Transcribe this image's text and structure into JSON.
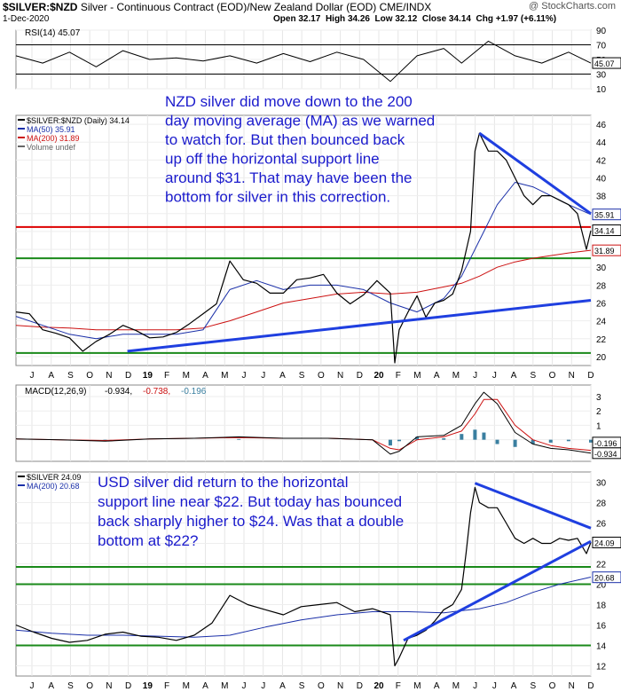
{
  "header": {
    "symbol": "$SILVER:$NZD",
    "description": "Silver - Continuous Contract (EOD)/New Zealand Dollar (EOD)",
    "exchange": "CME/INDX",
    "date": "1-Dec-2020",
    "open_label": "Open",
    "open": "32.17",
    "high_label": "High",
    "high": "34.26",
    "low_label": "Low",
    "low": "32.12",
    "close_label": "Close",
    "close": "34.14",
    "chg_label": "Chg",
    "chg": "+1.97 (+6.11%)",
    "watermark": "@ StockCharts.com"
  },
  "x_axis_labels": [
    "J",
    "A",
    "S",
    "O",
    "N",
    "D",
    "19",
    "F",
    "M",
    "A",
    "M",
    "J",
    "J",
    "A",
    "S",
    "O",
    "N",
    "D",
    "20",
    "F",
    "M",
    "A",
    "M",
    "J",
    "J",
    "A",
    "S",
    "O",
    "N",
    "D"
  ],
  "annotations": {
    "nzd": "NZD silver did move down to the 200 day moving average (MA) as we warned to watch for. But then bounced back up off the horizontal support line around $31. That may have been the bottom for silver in this correction.",
    "usd": "USD silver did return to the horizontal support line near $22. But today has bounced back sharply higher to $24. Was that a double bottom at $22?"
  },
  "colors": {
    "price": "#000000",
    "ma50": "#1a2fa8",
    "ma200": "#cc1111",
    "support_green": "#1a8a1a",
    "resistance_red": "#dd0000",
    "trendline_blue": "#1f3fe0",
    "annotation_text": "#1a1acc",
    "macd_hist": "#3a7fa0",
    "rsi_fill": "#4a6a4a"
  },
  "chart_data": [
    {
      "type": "line",
      "title": "RSI(14) 45.07",
      "legend_label": "RSI(14) 45.07",
      "ylim": [
        10,
        90
      ],
      "y_ticks": [
        10,
        30,
        50,
        70,
        90
      ],
      "reference_lines": [
        30,
        70
      ],
      "last_value": 45.07,
      "last_value_label": "45.07",
      "x": [
        0,
        6,
        12,
        18,
        24,
        30,
        36,
        42,
        48,
        54,
        60,
        66,
        72,
        78,
        84,
        90,
        96,
        100,
        106,
        112,
        118,
        124,
        129
      ],
      "values": [
        55,
        45,
        60,
        40,
        62,
        50,
        52,
        48,
        55,
        45,
        58,
        47,
        60,
        50,
        20,
        55,
        65,
        45,
        75,
        55,
        45,
        60,
        45
      ]
    },
    {
      "type": "line",
      "title": "$SILVER:$NZD (Daily) 34.14",
      "series": [
        {
          "name": "$SILVER:$NZD (Daily) 34.14",
          "legend_label": "$SILVER:$NZD (Daily) 34.14",
          "x": [
            0,
            3,
            6,
            9,
            12,
            15,
            18,
            21,
            24,
            27,
            30,
            33,
            36,
            39,
            42,
            45,
            48,
            51,
            54,
            57,
            60,
            63,
            66,
            69,
            72,
            75,
            78,
            81,
            84,
            85,
            86,
            87,
            88,
            90,
            92,
            94,
            96,
            98,
            100,
            101,
            102,
            103,
            104,
            106,
            108,
            110,
            112,
            114,
            116,
            118,
            120,
            122,
            124,
            126,
            128,
            129
          ],
          "values": [
            25.0,
            24.8,
            23.0,
            22.6,
            22.1,
            20.6,
            21.7,
            22.5,
            23.5,
            22.9,
            22.1,
            22.2,
            22.7,
            23.7,
            24.8,
            25.9,
            30.7,
            28.6,
            28.2,
            27.1,
            27.1,
            28.6,
            28.8,
            29.2,
            27.1,
            25.9,
            26.9,
            28.5,
            27.1,
            19.3,
            23.0,
            24.0,
            25.0,
            26.8,
            24.4,
            26.0,
            26.3,
            27.0,
            29.6,
            31.8,
            34.0,
            43.0,
            45.0,
            43.0,
            43.0,
            42.0,
            40.0,
            38.0,
            37.0,
            38.0,
            38.0,
            37.5,
            37.0,
            36.0,
            32.0,
            34.1
          ]
        },
        {
          "name": "MA(50) 35.91",
          "legend_label": "MA(50) 35.91",
          "x": [
            0,
            6,
            12,
            18,
            24,
            30,
            36,
            42,
            48,
            54,
            60,
            66,
            72,
            78,
            84,
            90,
            96,
            100,
            104,
            108,
            112,
            116,
            120,
            124,
            129
          ],
          "values": [
            24.5,
            23.5,
            22.5,
            22.0,
            22.5,
            22.5,
            22.5,
            23.0,
            27.5,
            28.5,
            27.5,
            28.0,
            28.0,
            27.5,
            26.0,
            25.0,
            26.5,
            29.0,
            33.0,
            37.0,
            39.5,
            39.0,
            38.0,
            37.0,
            35.9
          ]
        },
        {
          "name": "MA(200) 31.89",
          "legend_label": "MA(200) 31.89",
          "x": [
            0,
            6,
            12,
            18,
            24,
            30,
            36,
            42,
            48,
            54,
            60,
            66,
            72,
            78,
            84,
            90,
            96,
            100,
            104,
            108,
            112,
            116,
            120,
            124,
            129
          ],
          "values": [
            23.5,
            23.3,
            23.2,
            23.0,
            23.0,
            23.0,
            23.0,
            23.2,
            24.0,
            25.0,
            26.0,
            26.5,
            27.0,
            27.2,
            27.0,
            27.2,
            27.8,
            28.2,
            29.0,
            30.0,
            30.6,
            31.0,
            31.3,
            31.6,
            31.9
          ]
        },
        {
          "name": "Volume undef",
          "legend_label": "Volume undef",
          "x": [],
          "values": []
        }
      ],
      "ylim": [
        19,
        47
      ],
      "y_ticks": [
        20,
        22,
        24,
        26,
        28,
        30,
        32,
        34,
        36,
        38,
        40,
        42,
        44,
        46
      ],
      "last_value_labels": [
        {
          "value": 35.91,
          "label": "35.91"
        },
        {
          "value": 34.14,
          "label": "34.14"
        },
        {
          "value": 31.89,
          "label": "31.89"
        }
      ],
      "horizontal_lines": [
        {
          "value": 34.5,
          "color": "red"
        },
        {
          "value": 31.0,
          "color": "green"
        },
        {
          "value": 20.4,
          "color": "green"
        }
      ],
      "trendlines": [
        {
          "x": [
            25,
            129
          ],
          "values": [
            20.6,
            26.3
          ]
        },
        {
          "x": [
            104,
            129
          ],
          "values": [
            45.0,
            36.0
          ]
        }
      ]
    },
    {
      "type": "line",
      "title": "MACD(12,26,9) -0.934, -0.738, -0.196",
      "legend_prefix": "MACD(12,26,9)",
      "legend_values": [
        "-0.934",
        "-0.738",
        "-0.196"
      ],
      "ylim": [
        -1.5,
        3.8
      ],
      "y_ticks": [
        3,
        2,
        1,
        0
      ],
      "series": [
        {
          "name": "MACD",
          "x": [
            0,
            10,
            20,
            30,
            40,
            50,
            60,
            70,
            80,
            84,
            86,
            90,
            96,
            100,
            103,
            105,
            108,
            112,
            116,
            120,
            124,
            129
          ],
          "values": [
            0.05,
            0.0,
            -0.1,
            0.05,
            0.1,
            0.2,
            0.1,
            0.1,
            0.0,
            -1.0,
            -0.8,
            0.2,
            0.3,
            1.0,
            2.5,
            3.3,
            2.5,
            0.5,
            -0.3,
            -0.6,
            -0.7,
            -0.934
          ]
        },
        {
          "name": "Signal",
          "x": [
            0,
            10,
            20,
            30,
            40,
            50,
            60,
            70,
            80,
            84,
            86,
            90,
            96,
            100,
            103,
            105,
            108,
            112,
            116,
            120,
            124,
            129
          ],
          "values": [
            0.05,
            0.0,
            -0.05,
            0.05,
            0.1,
            0.15,
            0.1,
            0.1,
            0.0,
            -0.6,
            -0.7,
            0.0,
            0.2,
            0.6,
            1.8,
            2.8,
            2.8,
            1.0,
            0.0,
            -0.4,
            -0.6,
            -0.738
          ]
        },
        {
          "name": "Histogram",
          "x": [
            0,
            10,
            20,
            30,
            40,
            50,
            60,
            70,
            80,
            84,
            86,
            90,
            96,
            100,
            103,
            105,
            108,
            112,
            116,
            120,
            124,
            129
          ],
          "values": [
            0.0,
            0.0,
            -0.05,
            0.0,
            0.0,
            0.05,
            0.0,
            0.0,
            0.0,
            -0.4,
            -0.1,
            0.2,
            0.1,
            0.4,
            0.7,
            0.5,
            -0.3,
            -0.5,
            -0.3,
            -0.2,
            -0.1,
            -0.196
          ]
        }
      ],
      "last_value_labels": [
        {
          "value": -0.196,
          "label": "-0.196"
        },
        {
          "value": -0.934,
          "label": "-0.934"
        }
      ]
    },
    {
      "type": "line",
      "title": "$SILVER 24.09",
      "series": [
        {
          "name": "$SILVER 24.09",
          "legend_label": "$SILVER 24.09",
          "x": [
            0,
            4,
            8,
            12,
            16,
            20,
            24,
            28,
            32,
            36,
            40,
            44,
            48,
            52,
            56,
            60,
            64,
            68,
            72,
            76,
            80,
            84,
            85,
            86,
            88,
            90,
            92,
            94,
            96,
            98,
            100,
            101,
            102,
            103,
            104,
            106,
            108,
            110,
            112,
            114,
            116,
            118,
            120,
            122,
            124,
            126,
            128,
            129
          ],
          "values": [
            16.0,
            15.3,
            14.7,
            14.3,
            14.5,
            15.1,
            15.3,
            14.9,
            14.8,
            14.5,
            15.0,
            16.2,
            18.9,
            18.0,
            17.5,
            17.0,
            17.8,
            18.0,
            18.2,
            17.3,
            17.6,
            17.0,
            12.0,
            12.8,
            14.7,
            15.0,
            15.5,
            16.4,
            17.5,
            18.0,
            19.5,
            23.0,
            27.0,
            29.5,
            28.0,
            27.5,
            27.5,
            26.0,
            24.5,
            24.0,
            24.5,
            24.0,
            24.0,
            24.5,
            24.3,
            24.5,
            23.0,
            24.1
          ]
        },
        {
          "name": "MA(200) 20.68",
          "legend_label": "MA(200) 20.68",
          "x": [
            0,
            8,
            16,
            24,
            32,
            40,
            48,
            56,
            64,
            72,
            80,
            88,
            96,
            104,
            110,
            116,
            122,
            129
          ],
          "values": [
            15.5,
            15.2,
            15.0,
            15.0,
            14.9,
            14.8,
            15.0,
            15.8,
            16.5,
            17.0,
            17.3,
            17.3,
            17.2,
            17.6,
            18.2,
            19.2,
            20.0,
            20.7
          ]
        }
      ],
      "ylim": [
        11,
        31
      ],
      "y_ticks": [
        12,
        14,
        16,
        18,
        20,
        22,
        24,
        26,
        28,
        30
      ],
      "last_value_labels": [
        {
          "value": 24.09,
          "label": "24.09"
        },
        {
          "value": 20.68,
          "label": "20.68"
        }
      ],
      "horizontal_lines": [
        {
          "value": 21.7,
          "color": "green"
        },
        {
          "value": 20.0,
          "color": "green"
        },
        {
          "value": 14.0,
          "color": "green"
        }
      ],
      "trendlines": [
        {
          "x": [
            103,
            129
          ],
          "values": [
            29.9,
            25.5
          ]
        },
        {
          "x": [
            87,
            129
          ],
          "values": [
            14.5,
            24.2
          ]
        }
      ]
    }
  ]
}
